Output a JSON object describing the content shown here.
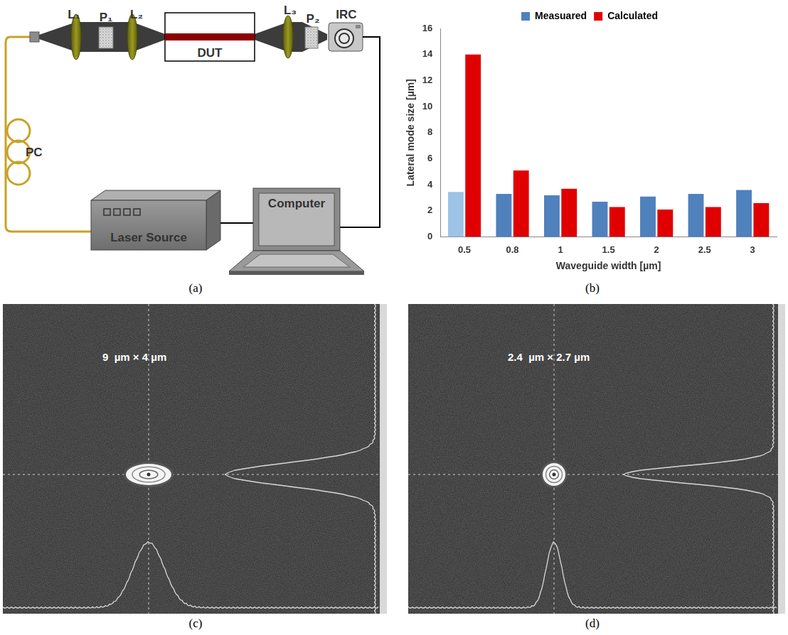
{
  "panel_labels": [
    "(a)",
    "(b)",
    "(c)",
    "(d)"
  ],
  "diagram": {
    "labels": {
      "lens1": "L₁",
      "polarizer1": "P₁",
      "lens2": "L₂",
      "dut": "DUT",
      "lens3": "L₃",
      "polarizer2": "P₂",
      "camera": "IRC",
      "controller": "PC",
      "computer": "Computer",
      "laser": "Laser Source"
    }
  },
  "chart_data": {
    "type": "bar",
    "categories": [
      "0.5",
      "0.8",
      "1",
      "1.5",
      "2",
      "2.5",
      "3"
    ],
    "series": [
      {
        "name": "Measuared",
        "color": "#4f81bd",
        "colors": [
          "#9dc3e6",
          "#4f81bd",
          "#4f81bd",
          "#4f81bd",
          "#4f81bd",
          "#4f81bd",
          "#4f81bd"
        ],
        "values": [
          3.45,
          3.3,
          3.2,
          2.7,
          3.1,
          3.3,
          3.6
        ]
      },
      {
        "name": "Calculated",
        "color": "#e00000",
        "values": [
          14,
          5.1,
          3.7,
          2.3,
          2.1,
          2.3,
          2.6
        ]
      }
    ],
    "xlabel": "Waveguide width [µm]",
    "ylabel": "Lateral mode size [µm]",
    "ylim": [
      0,
      16
    ],
    "yticks": [
      0,
      2,
      4,
      6,
      8,
      10,
      12,
      14,
      16
    ],
    "grid": false,
    "legend": "top"
  },
  "images": [
    {
      "label": "9  µm × 4 µm"
    },
    {
      "label": "2.4  µm × 2.7 µm"
    }
  ]
}
